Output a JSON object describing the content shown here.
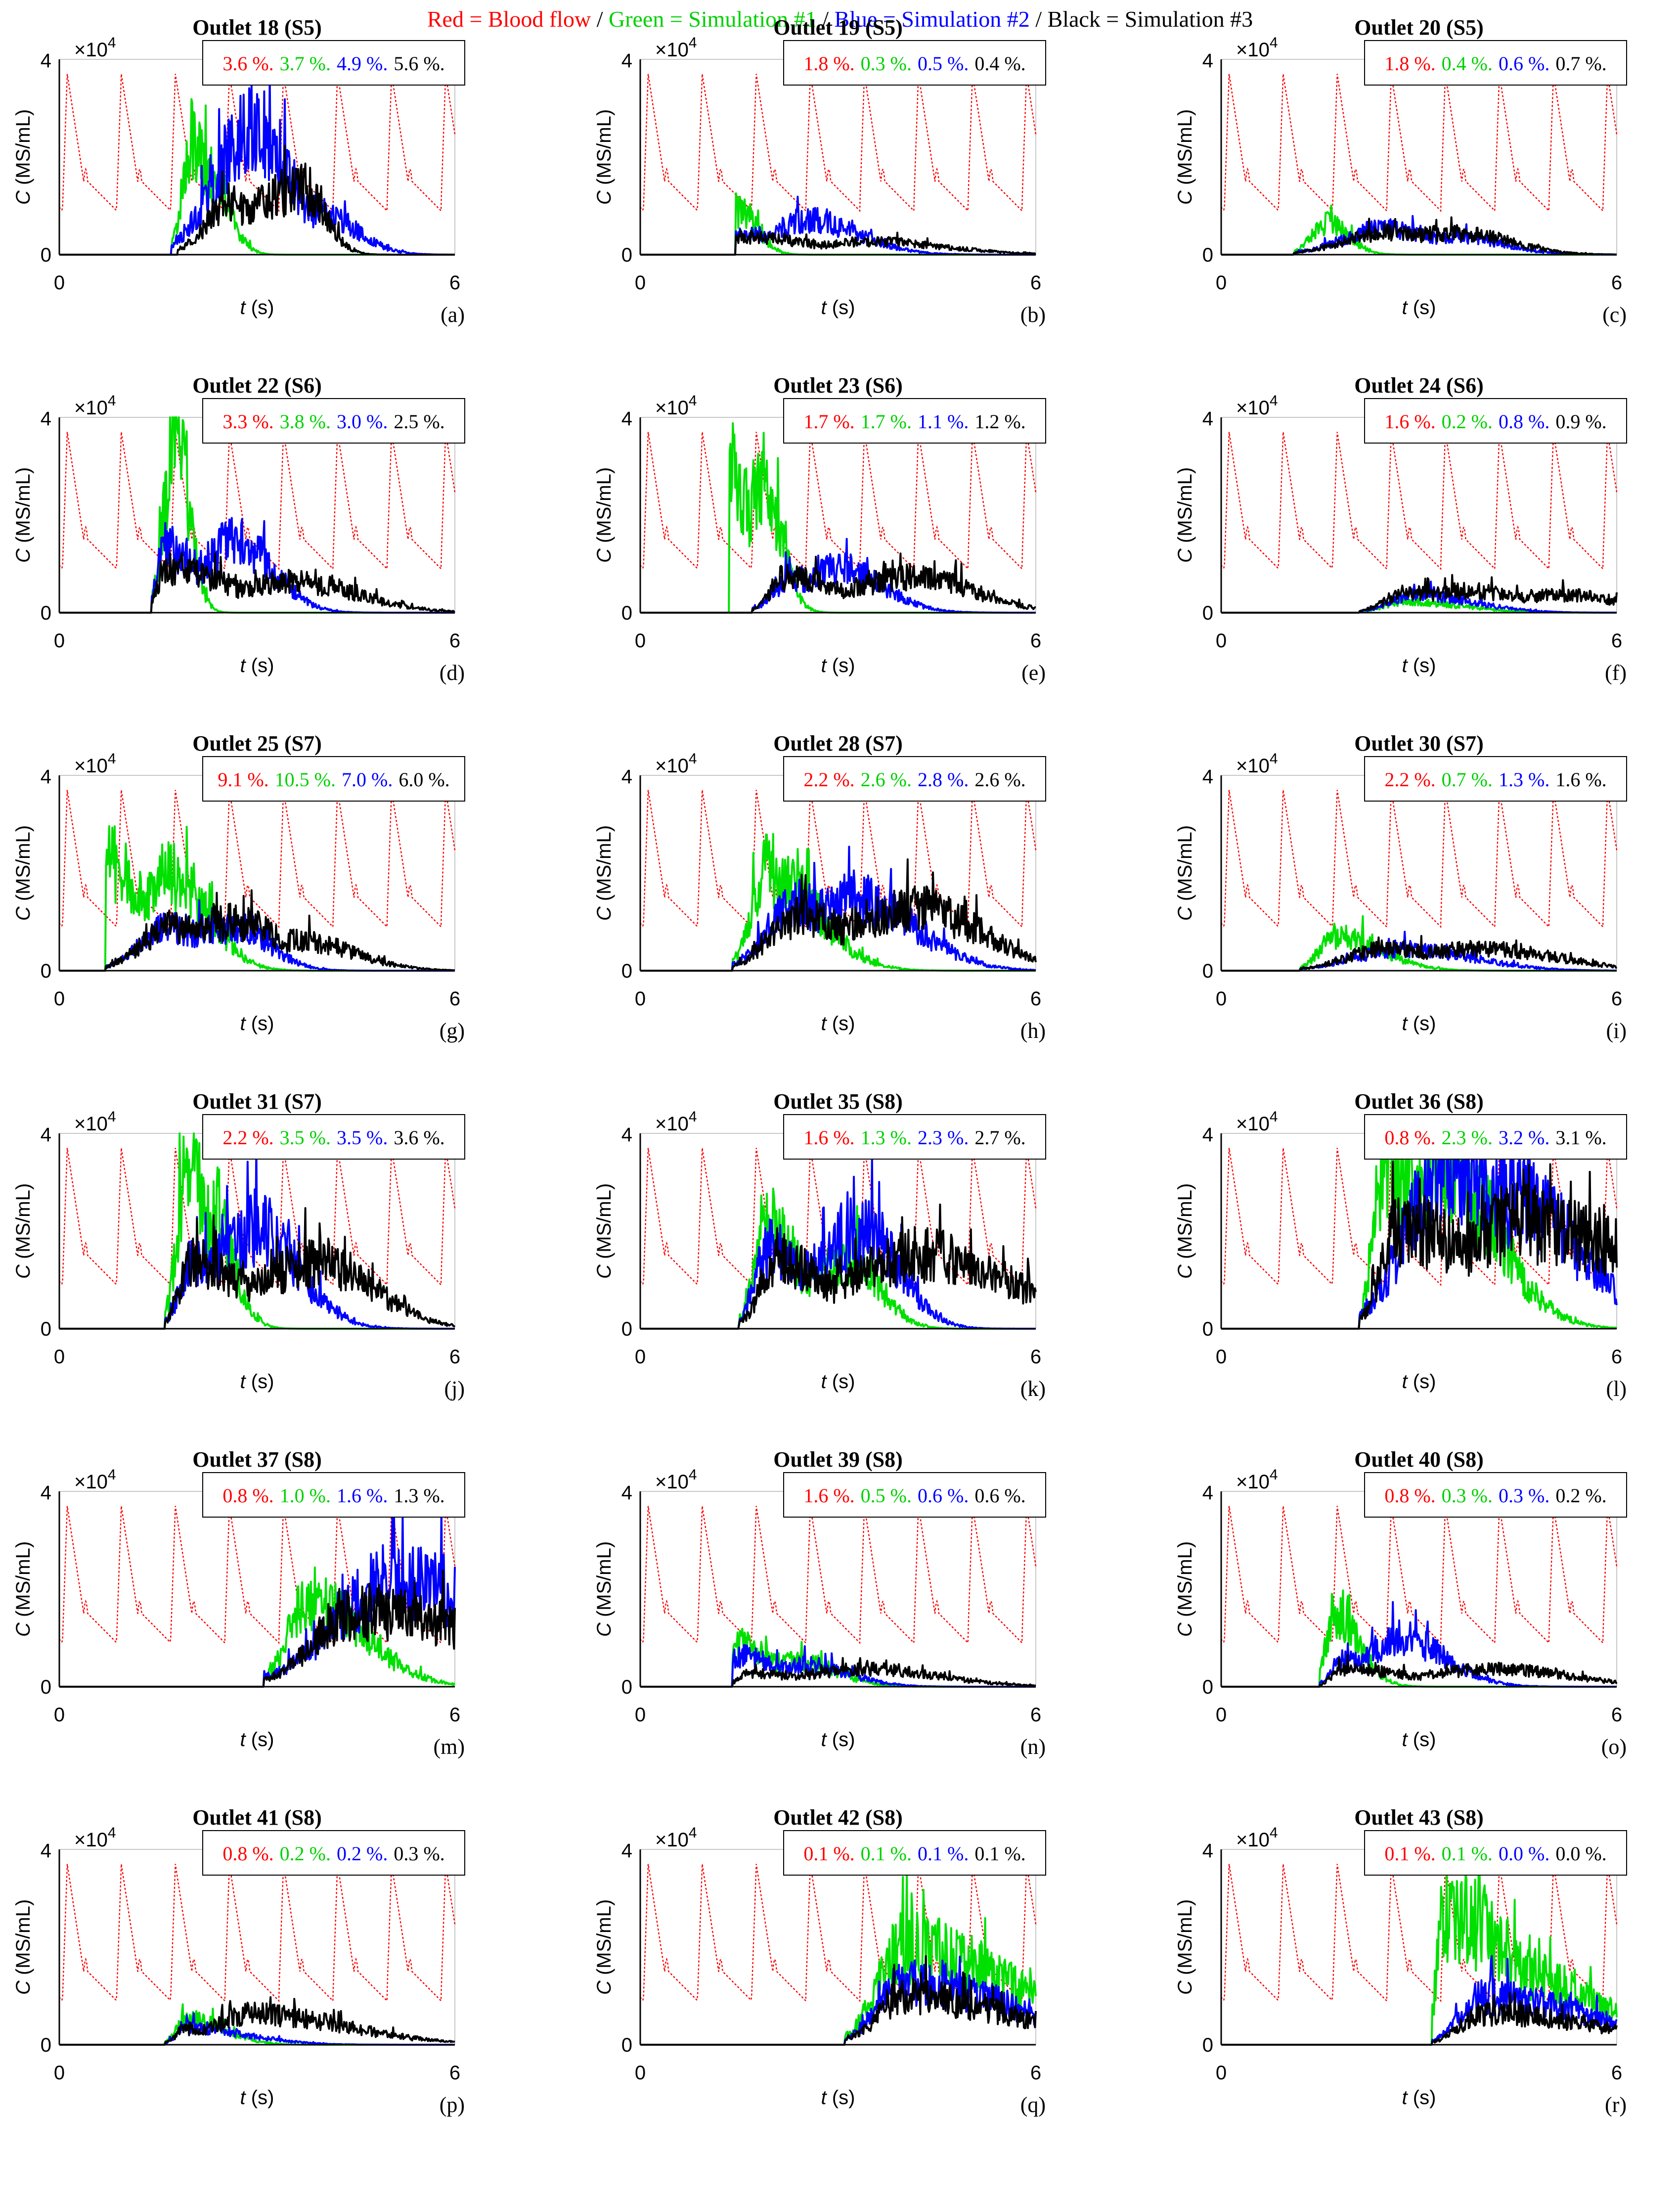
{
  "legend": {
    "red": "Red = Blood flow",
    "green": "Green = Simulation #1",
    "blue": "Blue = Simulation #2",
    "black": "Black = Simulation #3",
    "separator": " / "
  },
  "colors": {
    "red": "#ff0000",
    "green": "#00e000",
    "blue": "#0000ff",
    "black": "#000000"
  },
  "axis_common": {
    "xlabel_var": "t",
    "xlabel_unit": " (s)",
    "ylabel_var": "C",
    "ylabel_unit": " (MS/mL)",
    "exponent_base": "×10",
    "exponent_power": "4",
    "xlim": [
      0,
      6
    ],
    "ylim": [
      0,
      40000
    ],
    "xticks": [
      "0",
      "6"
    ],
    "yticks": [
      "0",
      "4"
    ],
    "percent_suffix": " %."
  },
  "chart_data": [
    {
      "type": "line",
      "panel": "a",
      "panel_label": "(a)",
      "title": "Outlet 18 (S5)",
      "percentages": [
        "3.6",
        "3.7",
        "4.9",
        "5.6"
      ],
      "green": {
        "onset": 1.7,
        "peak": 2.0,
        "amp": 25000,
        "decay": 0.5,
        "extra": [
          [
            2.3,
            18000
          ]
        ]
      },
      "blue": {
        "onset": 1.7,
        "peak": 2.4,
        "amp": 15000,
        "decay": 1.0,
        "extra": [
          [
            2.95,
            29000
          ],
          [
            3.9,
            10000
          ]
        ]
      },
      "black": {
        "onset": 1.8,
        "peak": 3.7,
        "amp": 15000,
        "decay": 0.6,
        "extra": [
          [
            2.6,
            12000
          ]
        ],
        "end": 5.0
      }
    },
    {
      "type": "line",
      "panel": "b",
      "panel_label": "(b)",
      "title": "Outlet 19 (S5)",
      "percentages": [
        "1.8",
        "0.3",
        "0.5",
        "0.4"
      ],
      "green": {
        "onset": 1.45,
        "peak": 1.5,
        "amp": 10000,
        "decay": 0.5,
        "extra": []
      },
      "blue": {
        "onset": 1.45,
        "peak": 1.5,
        "amp": 5000,
        "decay": 1.4,
        "extra": [
          [
            2.5,
            8000
          ]
        ]
      },
      "black": {
        "onset": 1.45,
        "peak": 1.5,
        "amp": 4000,
        "decay": 2.0,
        "extra": [
          [
            3.5,
            3000
          ]
        ]
      }
    },
    {
      "type": "line",
      "panel": "c",
      "panel_label": "(c)",
      "title": "Outlet 20 (S5)",
      "percentages": [
        "1.8",
        "0.4",
        "0.6",
        "0.7"
      ],
      "green": {
        "onset": 1.1,
        "peak": 1.6,
        "amp": 7000,
        "decay": 0.6,
        "extra": []
      },
      "blue": {
        "onset": 1.1,
        "peak": 2.5,
        "amp": 6000,
        "decay": 1.2,
        "extra": [
          [
            3.6,
            4000
          ]
        ]
      },
      "black": {
        "onset": 1.1,
        "peak": 2.5,
        "amp": 5000,
        "decay": 1.4,
        "extra": [
          [
            3.6,
            5000
          ]
        ]
      }
    },
    {
      "type": "line",
      "panel": "d",
      "panel_label": "(d)",
      "title": "Outlet 22 (S6)",
      "percentages": [
        "3.3",
        "3.8",
        "3.0",
        "2.5"
      ],
      "green": {
        "onset": 1.4,
        "peak": 1.75,
        "amp": 38000,
        "decay": 0.4,
        "extra": []
      },
      "blue": {
        "onset": 1.4,
        "peak": 1.6,
        "amp": 15000,
        "decay": 1.0,
        "extra": [
          [
            2.7,
            16000
          ]
        ]
      },
      "black": {
        "onset": 1.4,
        "peak": 1.6,
        "amp": 10000,
        "decay": 1.8,
        "extra": [
          [
            3.5,
            7000
          ]
        ]
      }
    },
    {
      "type": "line",
      "panel": "e",
      "panel_label": "(e)",
      "title": "Outlet 23 (S6)",
      "percentages": [
        "1.7",
        "1.7",
        "1.1",
        "1.2"
      ],
      "green": {
        "onset": 1.35,
        "peak": 1.4,
        "amp": 32000,
        "decay": 0.5,
        "extra": [
          [
            1.85,
            30000
          ]
        ]
      },
      "blue": {
        "onset": 1.7,
        "peak": 2.3,
        "amp": 8000,
        "decay": 1.2,
        "extra": [
          [
            3.0,
            10000
          ]
        ]
      },
      "black": {
        "onset": 1.7,
        "peak": 2.2,
        "amp": 8000,
        "decay": 1.6,
        "extra": [
          [
            4.2,
            8000
          ]
        ]
      }
    },
    {
      "type": "line",
      "panel": "f",
      "panel_label": "(f)",
      "title": "Outlet 24 (S6)",
      "percentages": [
        "1.6",
        "0.2",
        "0.8",
        "0.9"
      ],
      "green": {
        "onset": 2.1,
        "peak": 2.8,
        "amp": 2500,
        "decay": 1.5,
        "extra": []
      },
      "blue": {
        "onset": 2.1,
        "peak": 3.0,
        "amp": 4000,
        "decay": 1.5,
        "extra": []
      },
      "black": {
        "onset": 2.1,
        "peak": 2.8,
        "amp": 4500,
        "decay": 1.6,
        "extra": [
          [
            3.7,
            5000
          ],
          [
            5.2,
            4000
          ]
        ]
      }
    },
    {
      "type": "line",
      "panel": "g",
      "panel_label": "(g)",
      "title": "Outlet 25 (S7)",
      "percentages": [
        "9.1",
        "10.5",
        "7.0",
        "6.0"
      ],
      "green": {
        "onset": 0.7,
        "peak": 0.75,
        "amp": 24000,
        "decay": 1.0,
        "extra": [
          [
            1.7,
            22000
          ]
        ]
      },
      "blue": {
        "onset": 0.7,
        "peak": 1.7,
        "amp": 10000,
        "decay": 1.0,
        "extra": [
          [
            2.6,
            10000
          ]
        ]
      },
      "black": {
        "onset": 0.7,
        "peak": 1.7,
        "amp": 10000,
        "decay": 1.5,
        "extra": [
          [
            2.6,
            11000
          ],
          [
            3.6,
            7000
          ]
        ]
      }
    },
    {
      "type": "line",
      "panel": "h",
      "panel_label": "(h)",
      "title": "Outlet 28 (S7)",
      "percentages": [
        "2.2",
        "2.6",
        "2.8",
        "2.6"
      ],
      "green": {
        "onset": 1.4,
        "peak": 1.95,
        "amp": 23000,
        "decay": 1.3,
        "extra": []
      },
      "blue": {
        "onset": 1.4,
        "peak": 2.4,
        "amp": 15000,
        "decay": 1.6,
        "extra": [
          [
            3.3,
            16000
          ]
        ]
      },
      "black": {
        "onset": 1.4,
        "peak": 2.4,
        "amp": 12000,
        "decay": 1.8,
        "extra": [
          [
            4.2,
            14000
          ]
        ]
      }
    },
    {
      "type": "line",
      "panel": "i",
      "panel_label": "(i)",
      "title": "Outlet 30 (S7)",
      "percentages": [
        "2.2",
        "0.7",
        "1.3",
        "1.6"
      ],
      "green": {
        "onset": 1.2,
        "peak": 1.75,
        "amp": 8000,
        "decay": 1.2,
        "extra": []
      },
      "blue": {
        "onset": 1.2,
        "peak": 2.8,
        "amp": 5000,
        "decay": 1.8,
        "extra": []
      },
      "black": {
        "onset": 1.2,
        "peak": 2.5,
        "amp": 5000,
        "decay": 2.0,
        "extra": [
          [
            4.0,
            5000
          ]
        ]
      }
    },
    {
      "type": "line",
      "panel": "j",
      "panel_label": "(j)",
      "title": "Outlet 31 (S7)",
      "percentages": [
        "2.2",
        "3.5",
        "3.5",
        "3.6"
      ],
      "green": {
        "onset": 1.6,
        "peak": 1.95,
        "amp": 36000,
        "decay": 0.6,
        "extra": [
          [
            2.3,
            25000
          ]
        ]
      },
      "blue": {
        "onset": 1.6,
        "peak": 2.0,
        "amp": 15000,
        "decay": 1.2,
        "extra": [
          [
            2.95,
            23000
          ]
        ]
      },
      "black": {
        "onset": 1.6,
        "peak": 2.0,
        "amp": 15000,
        "decay": 1.5,
        "extra": [
          [
            3.95,
            15000
          ]
        ]
      }
    },
    {
      "type": "line",
      "panel": "k",
      "panel_label": "(k)",
      "title": "Outlet 35 (S8)",
      "percentages": [
        "1.6",
        "1.3",
        "2.3",
        "2.7"
      ],
      "green": {
        "onset": 1.5,
        "peak": 1.95,
        "amp": 24000,
        "decay": 0.8,
        "extra": [
          [
            3.2,
            16000
          ]
        ]
      },
      "blue": {
        "onset": 1.5,
        "peak": 1.95,
        "amp": 18000,
        "decay": 1.0,
        "extra": [
          [
            3.4,
            22000
          ]
        ]
      },
      "black": {
        "onset": 1.5,
        "peak": 2.1,
        "amp": 15000,
        "decay": 1.5,
        "extra": [
          [
            4.4,
            17000
          ],
          [
            5.2,
            12000
          ]
        ]
      }
    },
    {
      "type": "line",
      "panel": "l",
      "panel_label": "(l)",
      "title": "Outlet 36 (S8)",
      "percentages": [
        "0.8",
        "2.3",
        "3.2",
        "3.1"
      ],
      "green": {
        "onset": 2.1,
        "peak": 2.5,
        "amp": 38000,
        "decay": 1.5,
        "extra": [
          [
            3.3,
            38000
          ]
        ]
      },
      "blue": {
        "onset": 2.1,
        "peak": 3.4,
        "amp": 37000,
        "decay": 1.8,
        "extra": [
          [
            4.4,
            30000
          ]
        ]
      },
      "black": {
        "onset": 2.1,
        "peak": 2.7,
        "amp": 23000,
        "decay": 2.5,
        "extra": [
          [
            4.6,
            24000
          ],
          [
            5.3,
            21000
          ]
        ]
      }
    },
    {
      "type": "line",
      "panel": "m",
      "panel_label": "(m)",
      "title": "Outlet 37 (S8)",
      "percentages": [
        "0.8",
        "1.0",
        "1.6",
        "1.3"
      ],
      "green": {
        "onset": 3.1,
        "peak": 3.8,
        "amp": 20000,
        "decay": 1.5,
        "extra": []
      },
      "blue": {
        "onset": 3.1,
        "peak": 5.1,
        "amp": 24000,
        "decay": 3.0,
        "extra": []
      },
      "black": {
        "onset": 3.1,
        "peak": 4.5,
        "amp": 17000,
        "decay": 4.0,
        "extra": []
      }
    },
    {
      "type": "line",
      "panel": "n",
      "panel_label": "(n)",
      "title": "Outlet 39 (S8)",
      "percentages": [
        "1.6",
        "0.5",
        "0.6",
        "0.6"
      ],
      "green": {
        "onset": 1.4,
        "peak": 1.45,
        "amp": 10000,
        "decay": 1.0,
        "extra": [
          [
            2.4,
            6000
          ]
        ]
      },
      "blue": {
        "onset": 1.4,
        "peak": 1.45,
        "amp": 7000,
        "decay": 1.2,
        "extra": [
          [
            2.5,
            5000
          ]
        ]
      },
      "black": {
        "onset": 1.4,
        "peak": 1.6,
        "amp": 3000,
        "decay": 2.0,
        "extra": [
          [
            3.4,
            4000
          ]
        ]
      }
    },
    {
      "type": "line",
      "panel": "o",
      "panel_label": "(o)",
      "title": "Outlet 40 (S8)",
      "percentages": [
        "0.8",
        "0.3",
        "0.3",
        "0.2"
      ],
      "green": {
        "onset": 1.5,
        "peak": 1.7,
        "amp": 16000,
        "decay": 0.7,
        "extra": []
      },
      "blue": {
        "onset": 1.5,
        "peak": 1.8,
        "amp": 6000,
        "decay": 1.2,
        "extra": [
          [
            2.75,
            11000
          ]
        ]
      },
      "black": {
        "onset": 1.5,
        "peak": 1.8,
        "amp": 4000,
        "decay": 2.0,
        "extra": [
          [
            4.2,
            4000
          ]
        ]
      }
    },
    {
      "type": "line",
      "panel": "p",
      "panel_label": "(p)",
      "title": "Outlet 41 (S8)",
      "percentages": [
        "0.8",
        "0.2",
        "0.2",
        "0.3"
      ],
      "green": {
        "onset": 1.6,
        "peak": 1.9,
        "amp": 6000,
        "decay": 1.0,
        "extra": []
      },
      "blue": {
        "onset": 1.6,
        "peak": 1.9,
        "amp": 4000,
        "decay": 1.6,
        "extra": []
      },
      "black": {
        "onset": 1.6,
        "peak": 1.9,
        "amp": 3500,
        "decay": 2.5,
        "extra": [
          [
            2.95,
            7000
          ]
        ]
      }
    },
    {
      "type": "line",
      "panel": "q",
      "panel_label": "(q)",
      "title": "Outlet 42 (S8)",
      "percentages": [
        "0.1",
        "0.1",
        "0.1",
        "0.1"
      ],
      "green": {
        "onset": 3.1,
        "peak": 4.0,
        "amp": 22000,
        "decay": 3.0,
        "extra": []
      },
      "blue": {
        "onset": 3.1,
        "peak": 4.0,
        "amp": 14000,
        "decay": 3.0,
        "extra": []
      },
      "black": {
        "onset": 3.1,
        "peak": 4.0,
        "amp": 11000,
        "decay": 3.0,
        "extra": []
      }
    },
    {
      "type": "line",
      "panel": "r",
      "panel_label": "(r)",
      "title": "Outlet 43 (S8)",
      "percentages": [
        "0.1",
        "0.1",
        "0.0",
        "0.0"
      ],
      "green": {
        "onset": 3.2,
        "peak": 3.4,
        "amp": 30000,
        "decay": 2.0,
        "extra": [
          [
            4.6,
            16000
          ]
        ]
      },
      "blue": {
        "onset": 3.2,
        "peak": 4.0,
        "amp": 11000,
        "decay": 3.0,
        "extra": []
      },
      "black": {
        "onset": 3.2,
        "peak": 4.0,
        "amp": 7000,
        "decay": 3.0,
        "extra": []
      }
    }
  ]
}
